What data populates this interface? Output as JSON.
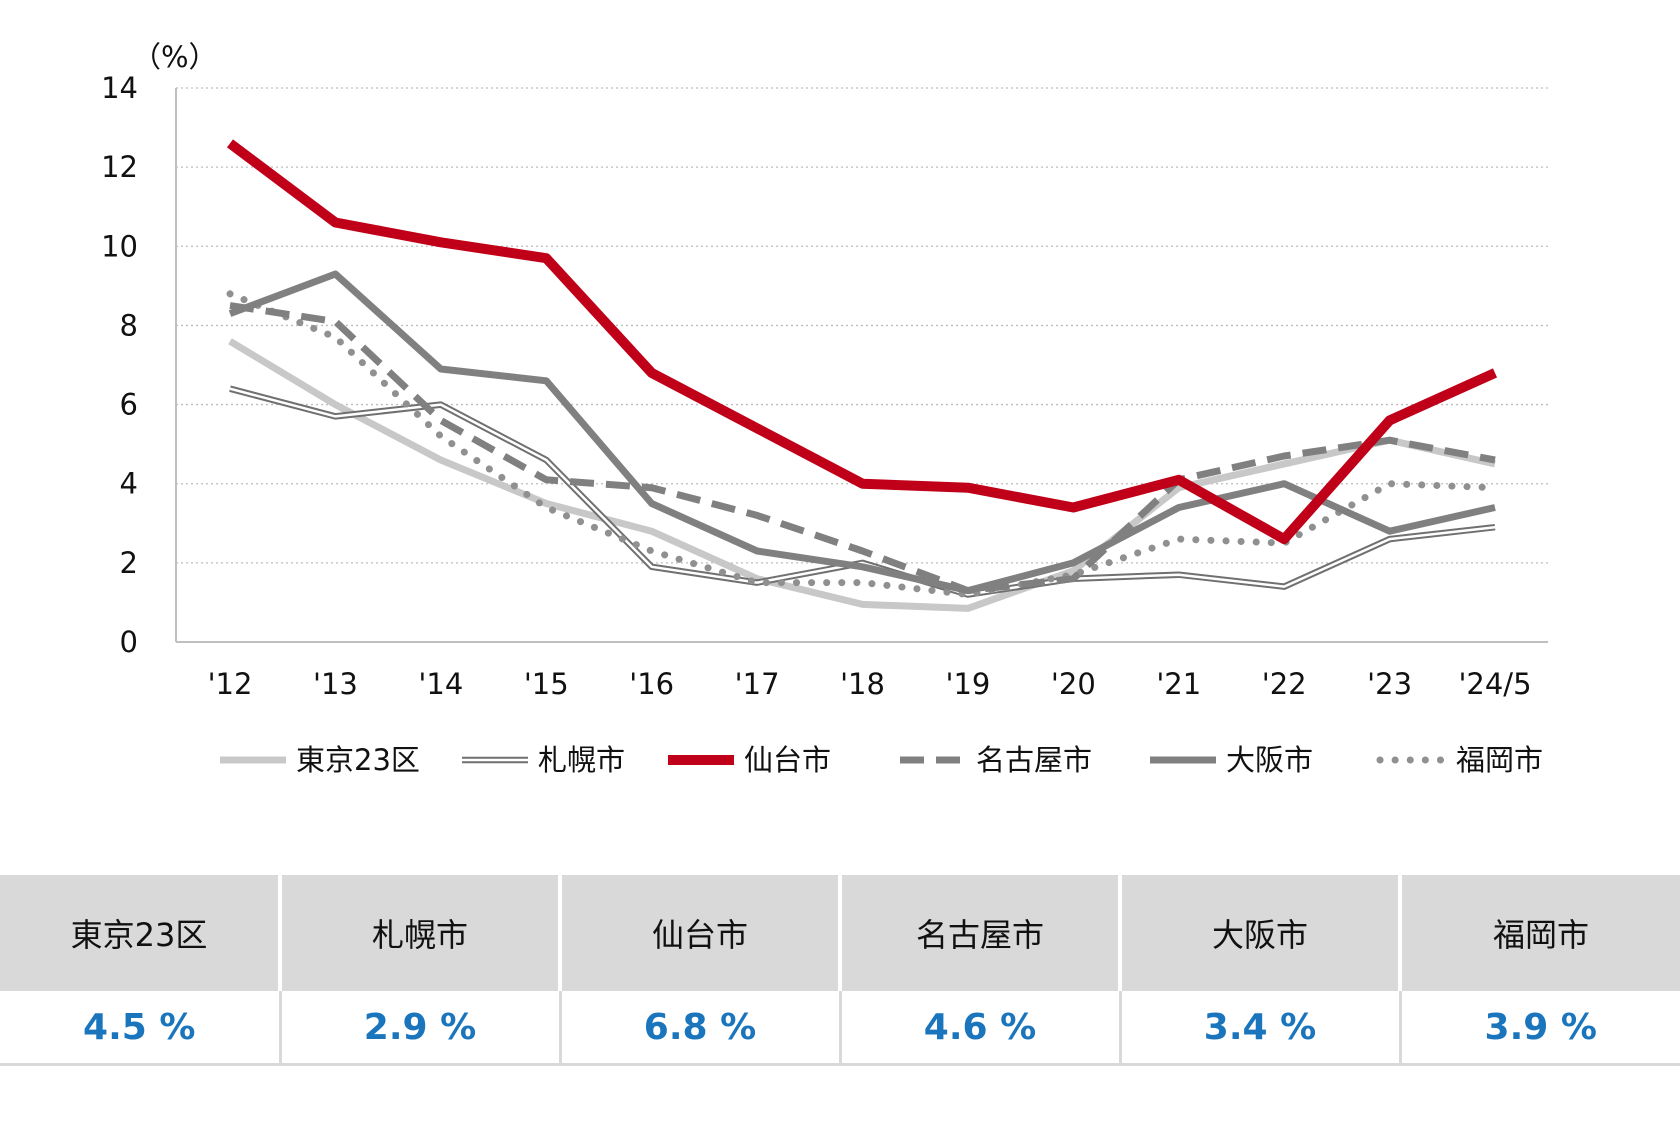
{
  "chart_data": {
    "type": "line",
    "ylabel": "（%）",
    "ylim": [
      0,
      14
    ],
    "yticks": [
      0,
      2,
      4,
      6,
      8,
      10,
      12,
      14
    ],
    "ytick_labels": [
      "0",
      "2",
      "4",
      "6",
      "8",
      "10",
      "12",
      "14"
    ],
    "categories": [
      "'12",
      "'13",
      "'14",
      "'15",
      "'16",
      "'17",
      "'18",
      "'19",
      "'20",
      "'21",
      "'22",
      "'23",
      "'24/5"
    ],
    "grid": "horizontal dotted",
    "legend_position": "bottom",
    "series": [
      {
        "name": "東京23区",
        "style": "solid-light",
        "color": "#c8c8c8",
        "values": [
          7.6,
          6.0,
          4.6,
          3.5,
          2.8,
          1.6,
          0.95,
          0.85,
          1.8,
          3.9,
          4.5,
          5.1,
          4.5
        ]
      },
      {
        "name": "札幌市",
        "style": "double",
        "color": "#707070",
        "values": [
          6.4,
          5.7,
          6.0,
          4.6,
          1.9,
          1.5,
          2.0,
          1.2,
          1.6,
          1.7,
          1.4,
          2.6,
          2.9
        ]
      },
      {
        "name": "仙台市",
        "style": "solid-bold",
        "color": "#c00018",
        "values": [
          12.6,
          10.6,
          10.1,
          9.7,
          6.8,
          5.4,
          4.0,
          3.9,
          3.4,
          4.1,
          2.6,
          5.6,
          6.8
        ]
      },
      {
        "name": "名古屋市",
        "style": "dashed",
        "color": "#808080",
        "values": [
          8.5,
          8.1,
          5.6,
          4.1,
          3.9,
          3.2,
          2.3,
          1.3,
          1.6,
          4.1,
          4.7,
          5.1,
          4.6
        ]
      },
      {
        "name": "大阪市",
        "style": "solid",
        "color": "#808080",
        "values": [
          8.3,
          9.3,
          6.9,
          6.6,
          3.5,
          2.3,
          1.9,
          1.3,
          2.0,
          3.4,
          4.0,
          2.8,
          3.4
        ]
      },
      {
        "name": "福岡市",
        "style": "dotted",
        "color": "#909090",
        "values": [
          8.8,
          7.7,
          5.2,
          3.4,
          2.3,
          1.5,
          1.5,
          1.2,
          1.7,
          2.6,
          2.5,
          4.0,
          3.9
        ]
      }
    ]
  },
  "summary": {
    "cities": [
      "東京23区",
      "札幌市",
      "仙台市",
      "名古屋市",
      "大阪市",
      "福岡市"
    ],
    "values": [
      "4.5 %",
      "2.9 %",
      "6.8 %",
      "4.6 %",
      "3.4 %",
      "3.9 %"
    ]
  }
}
